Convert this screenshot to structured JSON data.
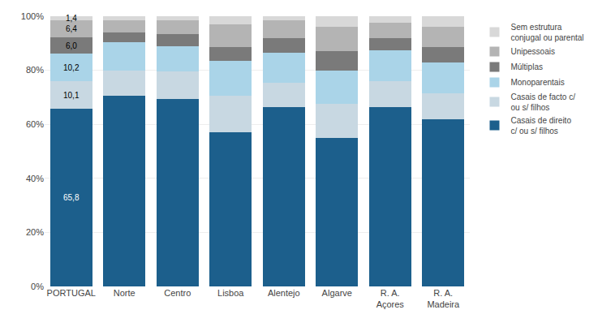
{
  "chart_data": {
    "type": "bar",
    "stacked": true,
    "categories": [
      "PORTUGAL",
      "Norte",
      "Centro",
      "Lisboa",
      "Alentejo",
      "Algarve",
      "R. A.\nAçores",
      "R. A.\nMadeira"
    ],
    "series": [
      {
        "name": "Casais de direito\nc/ ou s/ filhos",
        "color": "#1c5f8c",
        "values": [
          65.8,
          70.5,
          69.5,
          57.0,
          66.5,
          55.0,
          66.5,
          62.0
        ],
        "value_labels": [
          "65,8",
          null,
          null,
          null,
          null,
          null,
          null,
          null
        ]
      },
      {
        "name": "Casais de facto c/\nou s/ filhos",
        "color": "#c8d8e2",
        "values": [
          10.1,
          9.5,
          10.0,
          13.5,
          9.0,
          12.5,
          9.5,
          9.5
        ],
        "value_labels": [
          "10,1",
          null,
          null,
          null,
          null,
          null,
          null,
          null
        ]
      },
      {
        "name": "Monoparentais",
        "color": "#aad4e8",
        "values": [
          10.2,
          10.5,
          9.5,
          13.0,
          11.0,
          12.5,
          11.5,
          11.5
        ],
        "value_labels": [
          "10,2",
          null,
          null,
          null,
          null,
          null,
          null,
          null
        ]
      },
      {
        "name": "Múltiplas",
        "color": "#7a7a7a",
        "values": [
          6.0,
          3.5,
          4.5,
          5.0,
          5.5,
          7.0,
          4.5,
          5.5
        ],
        "value_labels": [
          "6,0",
          null,
          null,
          null,
          null,
          null,
          null,
          null
        ]
      },
      {
        "name": "Unipessoais",
        "color": "#b4b4b4",
        "values": [
          6.4,
          4.5,
          5.0,
          8.5,
          6.5,
          9.0,
          5.5,
          7.5
        ],
        "value_labels": [
          "6,4",
          null,
          null,
          null,
          null,
          null,
          null,
          null
        ]
      },
      {
        "name": "Sem estrutura\nconjugal ou parental",
        "color": "#d8d8d8",
        "values": [
          1.4,
          1.5,
          1.5,
          3.0,
          1.5,
          4.0,
          2.5,
          4.0
        ],
        "value_labels": [
          "1,4",
          null,
          null,
          null,
          null,
          null,
          null,
          null
        ]
      }
    ],
    "ylim": [
      0,
      100
    ],
    "yticks": [
      {
        "value": 0,
        "label": "0%"
      },
      {
        "value": 20,
        "label": "20%"
      },
      {
        "value": 40,
        "label": "40%"
      },
      {
        "value": 60,
        "label": "60%"
      },
      {
        "value": 80,
        "label": "80%"
      },
      {
        "value": 100,
        "label": "100%"
      }
    ],
    "grid": true,
    "legend": "right"
  }
}
